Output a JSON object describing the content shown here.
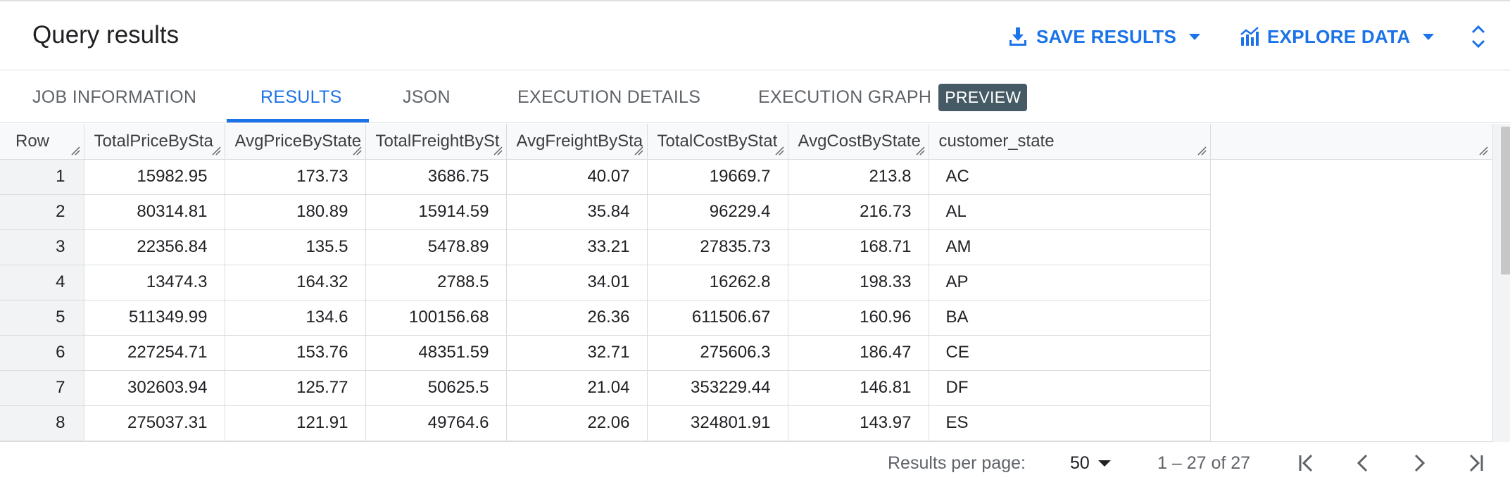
{
  "header": {
    "title": "Query results",
    "save_results_label": "SAVE RESULTS",
    "explore_data_label": "EXPLORE DATA"
  },
  "tabs": [
    {
      "label": "JOB INFORMATION"
    },
    {
      "label": "RESULTS"
    },
    {
      "label": "JSON"
    },
    {
      "label": "EXECUTION DETAILS"
    },
    {
      "label": "EXECUTION GRAPH"
    }
  ],
  "active_tab": "RESULTS",
  "preview_badge": "PREVIEW",
  "table": {
    "columns": [
      "Row",
      "TotalPriceBySta",
      "AvgPriceByState",
      "TotalFreightBySt",
      "AvgFreightBySta",
      "TotalCostByStat",
      "AvgCostByState",
      "customer_state"
    ],
    "rows": [
      [
        "1",
        "15982.95",
        "173.73",
        "3686.75",
        "40.07",
        "19669.7",
        "213.8",
        "AC"
      ],
      [
        "2",
        "80314.81",
        "180.89",
        "15914.59",
        "35.84",
        "96229.4",
        "216.73",
        "AL"
      ],
      [
        "3",
        "22356.84",
        "135.5",
        "5478.89",
        "33.21",
        "27835.73",
        "168.71",
        "AM"
      ],
      [
        "4",
        "13474.3",
        "164.32",
        "2788.5",
        "34.01",
        "16262.8",
        "198.33",
        "AP"
      ],
      [
        "5",
        "511349.99",
        "134.6",
        "100156.68",
        "26.36",
        "611506.67",
        "160.96",
        "BA"
      ],
      [
        "6",
        "227254.71",
        "153.76",
        "48351.59",
        "32.71",
        "275606.3",
        "186.47",
        "CE"
      ],
      [
        "7",
        "302603.94",
        "125.77",
        "50625.5",
        "21.04",
        "353229.44",
        "146.81",
        "DF"
      ],
      [
        "8",
        "275037.31",
        "121.91",
        "49764.6",
        "22.06",
        "324801.91",
        "143.97",
        "ES"
      ]
    ]
  },
  "footer": {
    "results_per_page_label": "Results per page:",
    "results_per_page_value": "50",
    "range_text": "1 – 27 of 27"
  },
  "colors": {
    "accent": "#1a73e8",
    "badge_bg": "#455a64",
    "header_bg": "#f8f9fa",
    "rownum_bg": "#f1f3f4"
  },
  "icons": [
    "download-icon",
    "chart-icon",
    "expand-collapse-icon",
    "first-page-icon",
    "prev-page-icon",
    "next-page-icon",
    "last-page-icon"
  ]
}
